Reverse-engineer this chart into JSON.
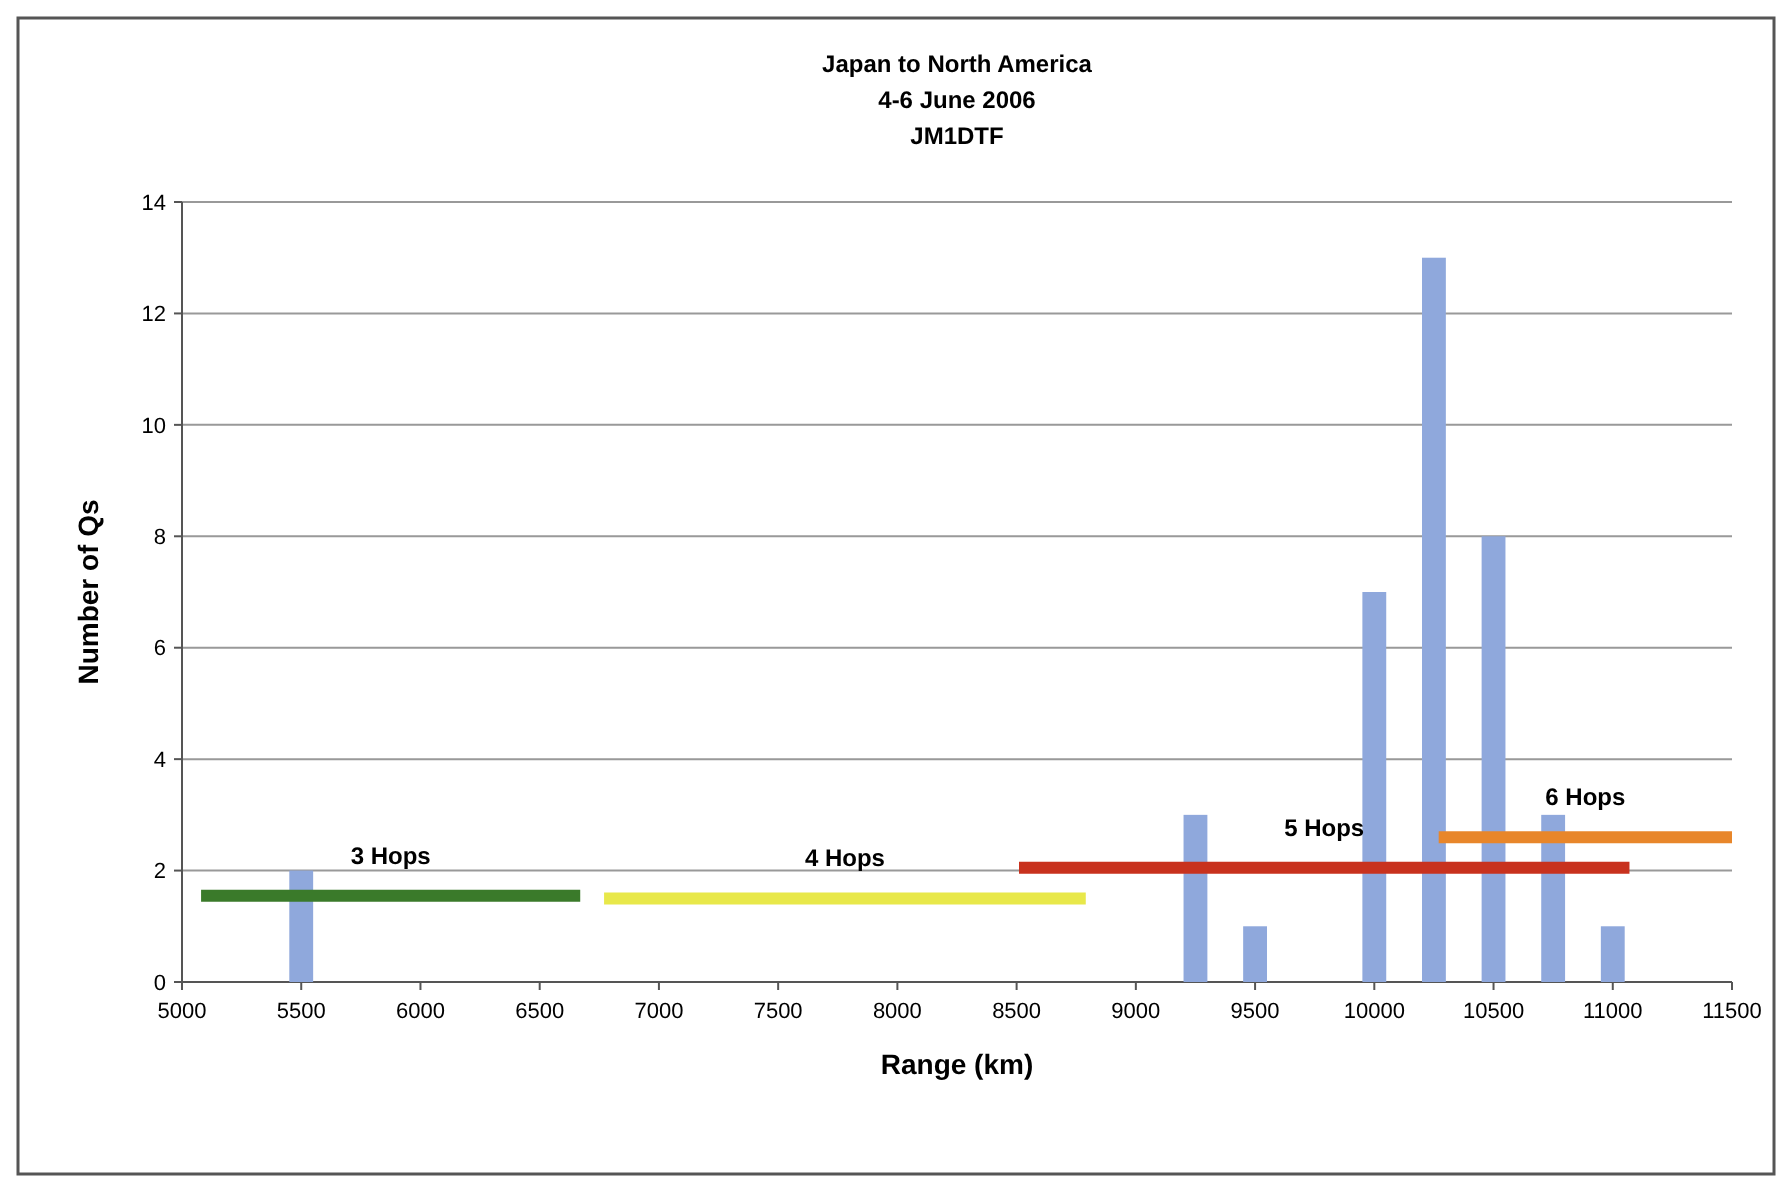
{
  "chart_data": {
    "type": "bar",
    "title": "Japan to North America\n4-6 June 2006\nJM1DTF",
    "xlabel": "Range (km)",
    "ylabel": "Number of Qs",
    "xlim": [
      5000,
      11500
    ],
    "xticks": [
      5000,
      5500,
      6000,
      6500,
      7000,
      7500,
      8000,
      8500,
      9000,
      9500,
      10000,
      10500,
      11000,
      11500
    ],
    "ylim": [
      0,
      14
    ],
    "yticks": [
      0,
      2,
      4,
      6,
      8,
      10,
      12,
      14
    ],
    "grid": "y",
    "series": [
      {
        "color": "#8fa8dc",
        "x": [
          5500,
          9250,
          9500,
          10000,
          10250,
          10500,
          10750,
          11000
        ],
        "values": [
          2,
          3,
          1,
          7,
          13,
          8,
          3,
          1
        ]
      },
      {
        "type": "line",
        "name": "3 Hops",
        "color": "#3a7a2a",
        "x": [
          5080,
          6670
        ],
        "values": [
          1.55,
          1.55
        ]
      },
      {
        "type": "line",
        "name": "4 Hops",
        "color": "#e8e84a",
        "x": [
          6770,
          8790
        ],
        "values": [
          1.5,
          1.5
        ]
      },
      {
        "type": "line",
        "name": "5 Hops",
        "color": "#c8321e",
        "x": [
          8510,
          11070
        ],
        "values": [
          2.05,
          2.05
        ]
      },
      {
        "type": "line",
        "name": "6 Hops",
        "color": "#e8862a",
        "x": [
          10270,
          11500
        ],
        "values": [
          2.6,
          2.6
        ]
      }
    ]
  }
}
